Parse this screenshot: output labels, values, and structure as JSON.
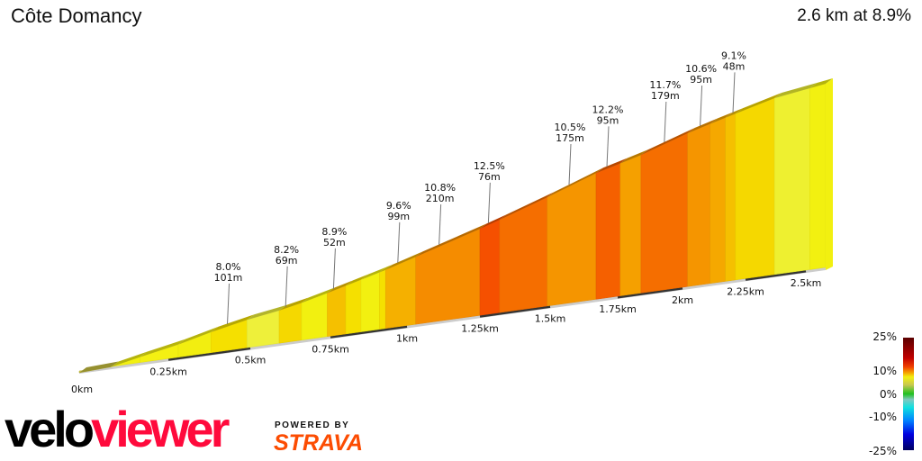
{
  "header": {
    "title": "Côte Domancy",
    "summary": "2.6 km at 8.9%"
  },
  "chart_data": {
    "type": "area",
    "title": "Côte Domancy",
    "distance_km": 2.6,
    "average_grade_pct": 8.9,
    "x_ticks": [
      "0km",
      "0.25km",
      "0.5km",
      "0.75km",
      "1km",
      "1.25km",
      "1.5km",
      "1.75km",
      "2km",
      "2.25km",
      "2.5km"
    ],
    "x_tick_values": [
      0,
      0.25,
      0.5,
      0.75,
      1,
      1.25,
      1.5,
      1.75,
      2,
      2.25,
      2.5
    ],
    "segments": [
      {
        "from": 0,
        "to": 0.09,
        "color": "#c8c040"
      },
      {
        "from": 0.09,
        "to": 0.17,
        "color": "#f2f010"
      },
      {
        "from": 0.17,
        "to": 0.28,
        "color": "#f4f012"
      },
      {
        "from": 0.28,
        "to": 0.38,
        "color": "#f2ee10"
      },
      {
        "from": 0.38,
        "to": 0.49,
        "color": "#f5e000"
      },
      {
        "from": 0.49,
        "to": 0.59,
        "color": "#eef03a"
      },
      {
        "from": 0.59,
        "to": 0.66,
        "color": "#f5d800"
      },
      {
        "from": 0.66,
        "to": 0.74,
        "color": "#f2f010"
      },
      {
        "from": 0.74,
        "to": 0.8,
        "color": "#f5c000"
      },
      {
        "from": 0.8,
        "to": 0.85,
        "color": "#f5e000"
      },
      {
        "from": 0.85,
        "to": 0.91,
        "color": "#f2f010"
      },
      {
        "from": 0.91,
        "to": 0.93,
        "color": "#f5e000"
      },
      {
        "from": 0.93,
        "to": 1.03,
        "color": "#f5b000"
      },
      {
        "from": 1.03,
        "to": 1.25,
        "color": "#f58c00"
      },
      {
        "from": 1.25,
        "to": 1.32,
        "color": "#f55000"
      },
      {
        "from": 1.32,
        "to": 1.49,
        "color": "#f56e00"
      },
      {
        "from": 1.49,
        "to": 1.67,
        "color": "#f59500"
      },
      {
        "from": 1.67,
        "to": 1.76,
        "color": "#f56000"
      },
      {
        "from": 1.76,
        "to": 1.84,
        "color": "#f5a000"
      },
      {
        "from": 1.84,
        "to": 2.02,
        "color": "#f56e00"
      },
      {
        "from": 2.02,
        "to": 2.11,
        "color": "#f59500"
      },
      {
        "from": 2.11,
        "to": 2.17,
        "color": "#f5a800"
      },
      {
        "from": 2.17,
        "to": 2.21,
        "color": "#f5c000"
      },
      {
        "from": 2.21,
        "to": 2.37,
        "color": "#f5d800"
      },
      {
        "from": 2.37,
        "to": 2.52,
        "color": "#eef030"
      },
      {
        "from": 2.52,
        "to": 2.6,
        "color": "#f2f010"
      }
    ],
    "annotations": [
      {
        "grade": "8.0%",
        "length": "101m",
        "at_km": 0.43
      },
      {
        "grade": "8.2%",
        "length": "69m",
        "at_km": 0.61
      },
      {
        "grade": "8.9%",
        "length": "52m",
        "at_km": 0.76
      },
      {
        "grade": "9.6%",
        "length": "99m",
        "at_km": 0.97
      },
      {
        "grade": "10.8%",
        "length": "210m",
        "at_km": 1.11
      },
      {
        "grade": "12.5%",
        "length": "76m",
        "at_km": 1.28
      },
      {
        "grade": "10.5%",
        "length": "175m",
        "at_km": 1.57
      },
      {
        "grade": "12.2%",
        "length": "95m",
        "at_km": 1.71
      },
      {
        "grade": "11.7%",
        "length": "179m",
        "at_km": 1.93
      },
      {
        "grade": "10.6%",
        "length": "95m",
        "at_km": 2.07
      },
      {
        "grade": "9.1%",
        "length": "48m",
        "at_km": 2.2
      }
    ],
    "legend": {
      "labels": [
        "25%",
        "10%",
        "0%",
        "-10%",
        "-25%"
      ]
    }
  },
  "branding": {
    "velo": "velo",
    "viewer": "viewer",
    "powered_by": "POWERED BY",
    "strava": "STRAVA"
  }
}
